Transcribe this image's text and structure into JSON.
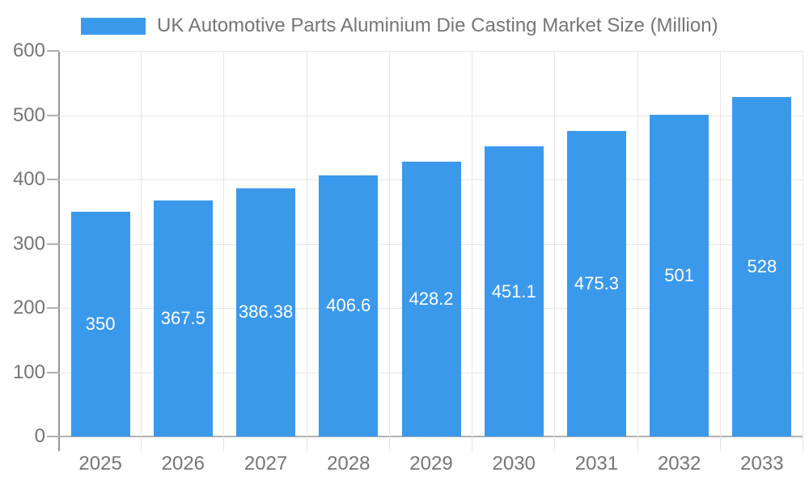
{
  "legend": {
    "label": "UK Automotive Parts Aluminium Die Casting Market Size (Million)"
  },
  "chart_data": {
    "type": "bar",
    "title": "UK Automotive Parts Aluminium Die Casting Market Size (Million)",
    "categories": [
      "2025",
      "2026",
      "2027",
      "2028",
      "2029",
      "2030",
      "2031",
      "2032",
      "2033"
    ],
    "values": [
      350,
      367.5,
      386.38,
      406.6,
      428.2,
      451.1,
      475.3,
      501,
      528
    ],
    "value_labels": [
      "350",
      "367.5",
      "386.38",
      "406.6",
      "428.2",
      "451.1",
      "475.3",
      "501",
      "528"
    ],
    "xlabel": "",
    "ylabel": "",
    "ylim": [
      0,
      600
    ],
    "yticks": [
      0,
      100,
      200,
      300,
      400,
      500,
      600
    ],
    "grid": true,
    "legend_position": "top",
    "colors": {
      "bar": "#3b99ec",
      "value_label": "#ffffff",
      "axis_text": "#757575",
      "grid_line": "#e6e6e6",
      "y_axis_line": "#949494",
      "x_axis_line": "#b3b3b3",
      "y_tick": "#b0b0b0",
      "x_tick": "#e2e2e2"
    }
  }
}
